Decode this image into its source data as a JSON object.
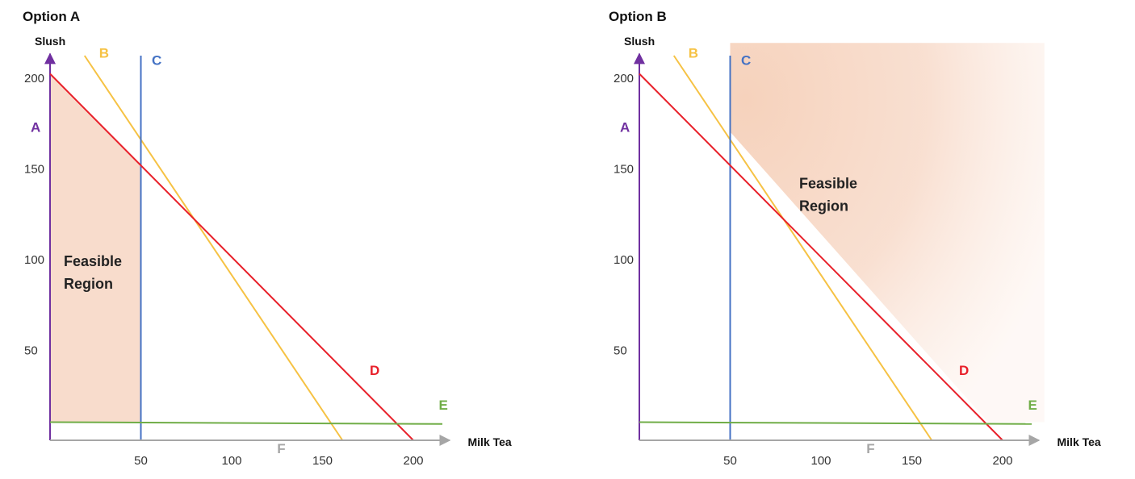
{
  "chart_data": [
    {
      "type": "line",
      "title": "Option A",
      "ylabel": "Slush",
      "xlabel": "Milk Tea",
      "xlim": [
        0,
        215
      ],
      "ylim": [
        0,
        213
      ],
      "x_ticks": [
        50,
        100,
        150,
        200
      ],
      "y_ticks": [
        50,
        100,
        150,
        200
      ],
      "grid": false,
      "series": [
        {
          "name": "A",
          "color": "#7030a0",
          "x": [
            0,
            0
          ],
          "y": [
            0,
            213
          ]
        },
        {
          "name": "B",
          "color": "#f6c244",
          "x": [
            19,
            161
          ],
          "y": [
            212,
            0
          ]
        },
        {
          "name": "C",
          "color": "#4472c4",
          "x": [
            50,
            50
          ],
          "y": [
            0,
            212
          ]
        },
        {
          "name": "D",
          "color": "#e8202a",
          "x": [
            0,
            200
          ],
          "y": [
            202,
            0
          ]
        },
        {
          "name": "E",
          "color": "#70ad47",
          "x": [
            0,
            216
          ],
          "y": [
            10,
            9
          ]
        },
        {
          "name": "F",
          "color": "#a6a6a6",
          "x": [
            0,
            220
          ],
          "y": [
            0,
            0
          ]
        }
      ],
      "feasible_region": {
        "label_line1": "Feasible",
        "label_line2": "Region",
        "color": "#f8dccc",
        "polygon": [
          [
            0,
            10
          ],
          [
            50,
            10
          ],
          [
            50,
            152
          ],
          [
            0,
            202
          ]
        ]
      }
    },
    {
      "type": "line",
      "title": "Option B",
      "ylabel": "Slush",
      "xlabel": "Milk Tea",
      "xlim": [
        0,
        215
      ],
      "ylim": [
        0,
        213
      ],
      "x_ticks": [
        50,
        100,
        150,
        200
      ],
      "y_ticks": [
        50,
        100,
        150,
        200
      ],
      "grid": false,
      "series": [
        {
          "name": "A",
          "color": "#7030a0",
          "x": [
            0,
            0
          ],
          "y": [
            0,
            213
          ]
        },
        {
          "name": "B",
          "color": "#f6c244",
          "x": [
            19,
            161
          ],
          "y": [
            212,
            0
          ]
        },
        {
          "name": "C",
          "color": "#4472c4",
          "x": [
            50,
            50
          ],
          "y": [
            0,
            212
          ]
        },
        {
          "name": "D",
          "color": "#e8202a",
          "x": [
            0,
            200
          ],
          "y": [
            202,
            0
          ]
        },
        {
          "name": "E",
          "color": "#70ad47",
          "x": [
            0,
            216
          ],
          "y": [
            10,
            9
          ]
        },
        {
          "name": "F",
          "color": "#a6a6a6",
          "x": [
            0,
            220
          ],
          "y": [
            0,
            0
          ]
        }
      ],
      "feasible_region": {
        "label_line1": "Feasible",
        "label_line2": "Region",
        "color": "#f6d2bc",
        "fade": true,
        "polygon": [
          [
            50,
            170
          ],
          [
            50,
            219
          ],
          [
            223,
            219
          ],
          [
            223,
            10
          ],
          [
            192,
            10
          ]
        ]
      }
    }
  ]
}
